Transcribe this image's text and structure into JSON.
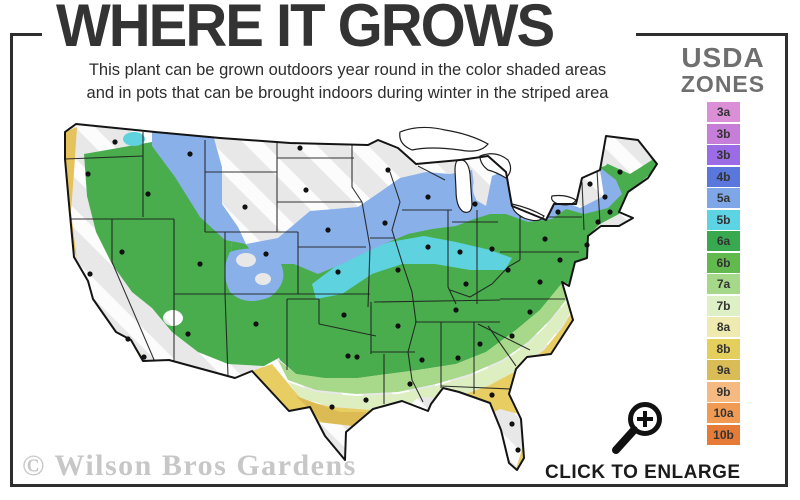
{
  "header": {
    "title": "WHERE IT GROWS",
    "subtitle_line1": "This plant can be grown outdoors year round in the color shaded areas",
    "subtitle_line2": "and in pots that can be brought indoors during winter in the striped area"
  },
  "legend": {
    "title_line1": "USDA",
    "title_line2": "ZONES",
    "zones": [
      {
        "label": "3a",
        "color": "#da8fd6"
      },
      {
        "label": "3b",
        "color": "#c77ed8"
      },
      {
        "label": "3b",
        "color": "#9c6ce6"
      },
      {
        "label": "4b",
        "color": "#5a77dc"
      },
      {
        "label": "5a",
        "color": "#7fa7e8"
      },
      {
        "label": "5b",
        "color": "#5dd4e4"
      },
      {
        "label": "6a",
        "color": "#38a94f"
      },
      {
        "label": "6b",
        "color": "#62ba4e"
      },
      {
        "label": "7a",
        "color": "#a5d888"
      },
      {
        "label": "7b",
        "color": "#def0c6"
      },
      {
        "label": "8a",
        "color": "#eeeab0"
      },
      {
        "label": "8b",
        "color": "#e4cf5d"
      },
      {
        "label": "9a",
        "color": "#d9bc55"
      },
      {
        "label": "9b",
        "color": "#f4ba81"
      },
      {
        "label": "10a",
        "color": "#f19a54"
      },
      {
        "label": "10b",
        "color": "#e57b36"
      }
    ]
  },
  "map_colors": {
    "too_cold_striped_base": "#e8e8e8",
    "stripe": "#ffffff",
    "blue_band": "#8ab0ea",
    "cyan_band": "#5ed2de",
    "green_band": "#49ad4e",
    "light_green_band": "#a8d98a",
    "pale_green_band": "#ddefc1",
    "yellow_band": "#e8cd62",
    "tan_band": "#dcbb55",
    "west_coast_yellow": "#e6c25d",
    "city_marker": "#111111",
    "border_line": "#1f1f1f"
  },
  "frame_color": "#2e2e2e",
  "footer": {
    "watermark": "© Wilson Bros Gardens",
    "enlarge_label": "CLICK TO ENLARGE"
  }
}
